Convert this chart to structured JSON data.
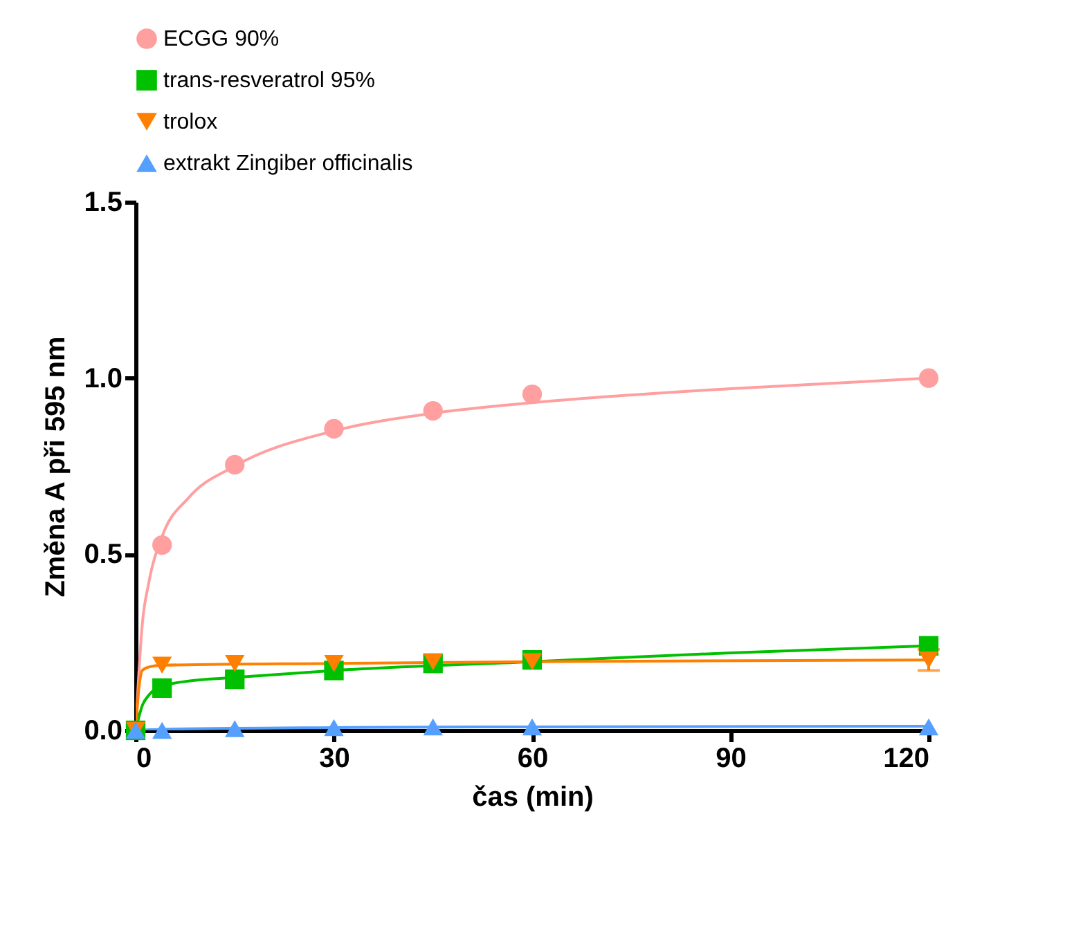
{
  "chart_data": {
    "type": "scatter",
    "xlabel": "čas (min)",
    "ylabel": "Změna A při 595 nm",
    "xlim": [
      0,
      120
    ],
    "xticks": [
      0,
      30,
      60,
      90,
      120
    ],
    "ylim": [
      0,
      1.5
    ],
    "yticks": [
      {
        "value": 0,
        "label": "0.0"
      },
      0.5,
      {
        "value": 1,
        "label": "1.0"
      },
      1.5
    ],
    "grid": false,
    "legend": "top",
    "series": [
      {
        "name": "ECGG 90%",
        "marker": "circle",
        "color": "#ff9f9f",
        "x": [
          4,
          15,
          30,
          45,
          60,
          120
        ],
        "values": [
          0.526,
          0.754,
          0.856,
          0.907,
          0.954,
          1.0
        ]
      },
      {
        "name": "trans-resveratrol 95%",
        "marker": "square",
        "color": "#00c000",
        "x": [
          0,
          4,
          15,
          30,
          45,
          60,
          120
        ],
        "values": [
          0,
          0.12,
          0.145,
          0.17,
          0.19,
          0.2,
          0.24
        ]
      },
      {
        "name": "trolox",
        "marker": "triangle-down",
        "color": "#ff8000",
        "x": [
          0,
          4,
          15,
          30,
          45,
          60,
          120
        ],
        "values": [
          0,
          0.185,
          0.19,
          0.19,
          0.195,
          0.195,
          0.2
        ],
        "errors": [
          null,
          null,
          null,
          null,
          null,
          null,
          0.03
        ]
      },
      {
        "name": "extrakt Zingiber officinalis",
        "marker": "triangle-up",
        "color": "#55a0ff",
        "x": [
          0,
          4,
          15,
          30,
          45,
          60,
          120
        ],
        "values": [
          0,
          0.0,
          0.005,
          0.008,
          0.01,
          0.01,
          0.01
        ]
      },
      {
        "type": "line",
        "marker": "none",
        "line_style": "solid",
        "color": "#ff9f9f",
        "x": [
          0,
          1,
          2,
          4,
          8,
          15,
          30,
          45,
          60,
          90,
          120
        ],
        "values": [
          0,
          0.3,
          0.42,
          0.55,
          0.66,
          0.75,
          0.85,
          0.9,
          0.93,
          0.97,
          1.0
        ]
      },
      {
        "type": "line",
        "marker": "none",
        "line_style": "solid",
        "color": "#00c000",
        "x": [
          0,
          1,
          2,
          4,
          8,
          15,
          30,
          60,
          90,
          120
        ],
        "values": [
          0,
          0.07,
          0.1,
          0.125,
          0.14,
          0.15,
          0.17,
          0.195,
          0.22,
          0.24
        ]
      },
      {
        "type": "line",
        "marker": "none",
        "line_style": "solid",
        "color": "#ff8000",
        "x": [
          0,
          0.5,
          1,
          2,
          4,
          30,
          60,
          120
        ],
        "values": [
          0,
          0.12,
          0.17,
          0.18,
          0.185,
          0.19,
          0.195,
          0.2
        ]
      },
      {
        "type": "line",
        "marker": "none",
        "line_style": "solid",
        "color": "#55a0ff",
        "x": [
          0,
          4,
          30,
          60,
          120
        ],
        "values": [
          0,
          0.003,
          0.008,
          0.01,
          0.012
        ]
      }
    ]
  }
}
